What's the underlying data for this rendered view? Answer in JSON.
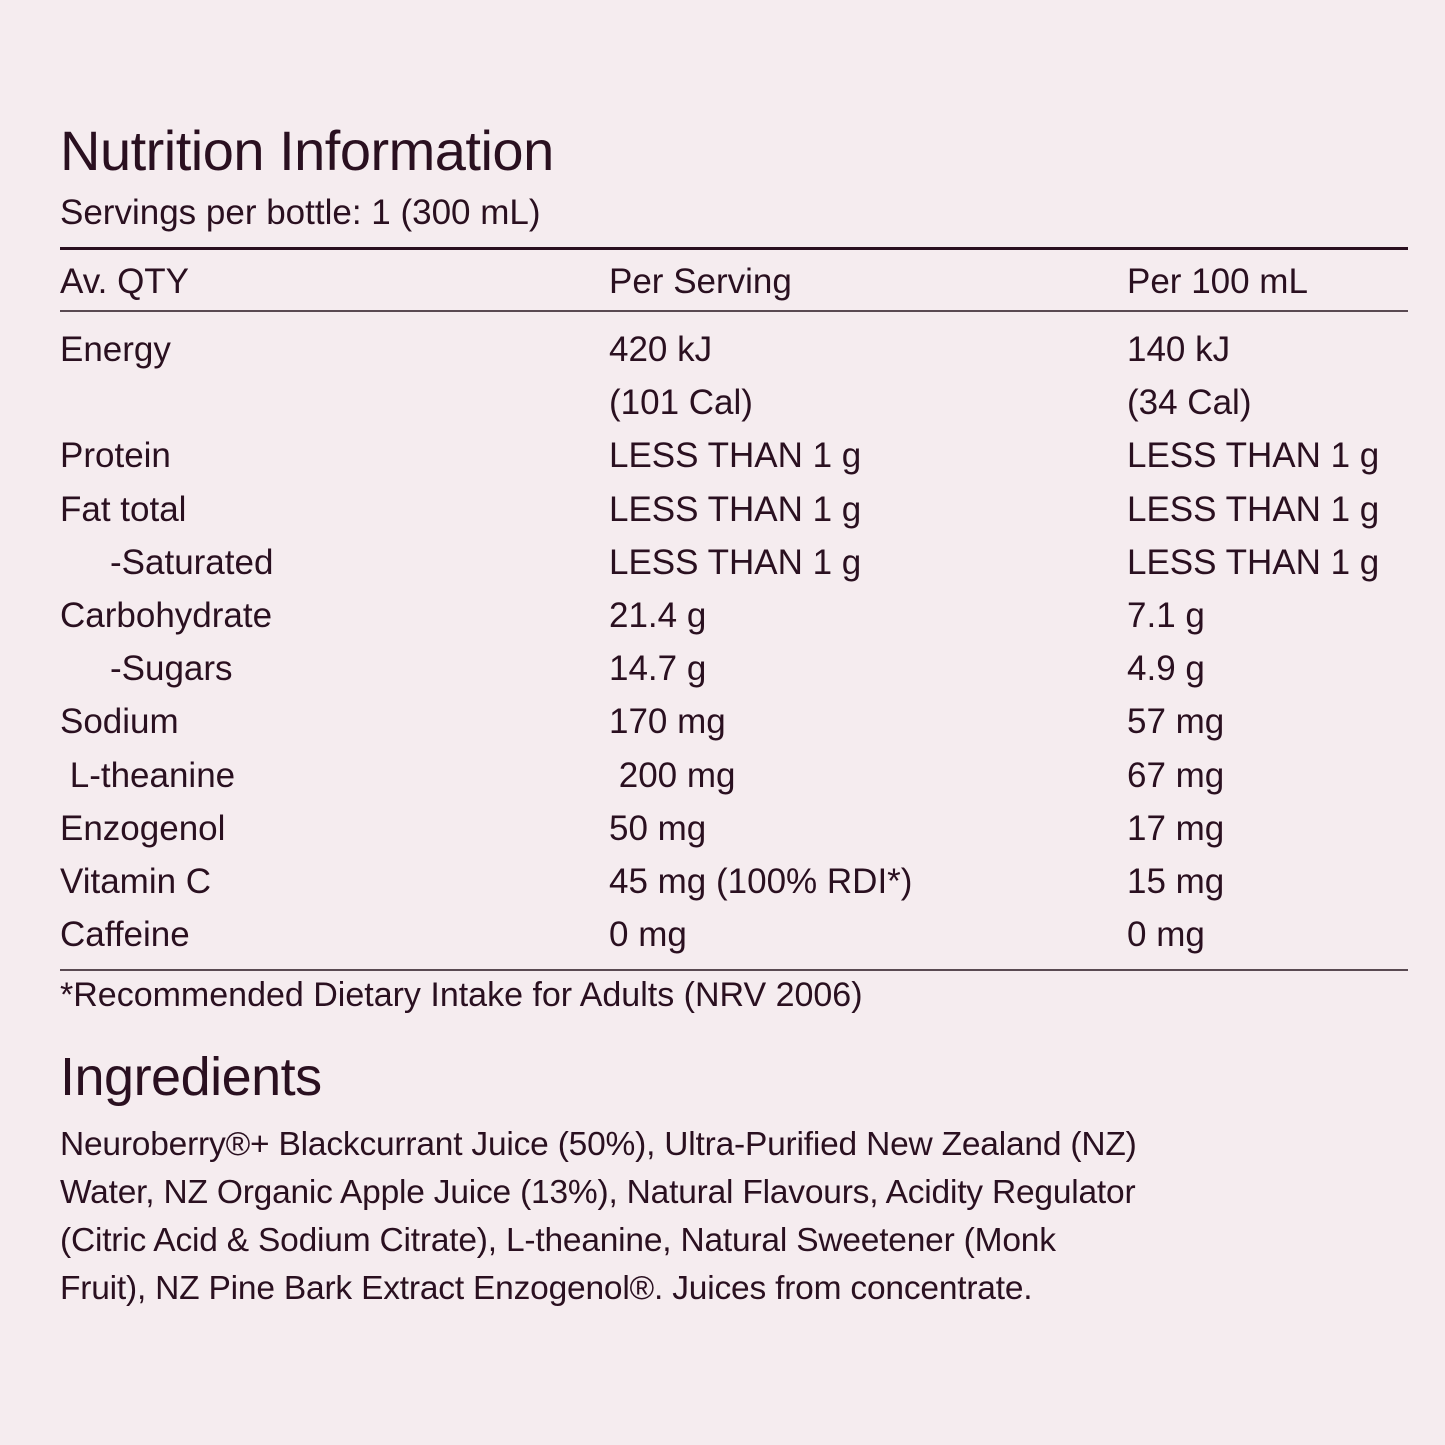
{
  "nutrition": {
    "title": "Nutrition Information",
    "servings": "Servings per bottle: 1 (300 mL)",
    "headers": [
      "Av. QTY",
      "Per Serving",
      "Per 100 mL"
    ],
    "rows": [
      {
        "name": "Energy",
        "per_serving": "420 kJ",
        "per_100ml": "140 kJ",
        "indent": false
      },
      {
        "name": "",
        "per_serving": "(101 Cal)",
        "per_100ml": "(34 Cal)",
        "indent": false
      },
      {
        "name": "Protein",
        "per_serving": "LESS THAN 1 g",
        "per_100ml": "LESS THAN 1 g",
        "indent": false
      },
      {
        "name": "Fat total",
        "per_serving": "LESS THAN 1 g",
        "per_100ml": "LESS THAN 1 g",
        "indent": false
      },
      {
        "name": "-Saturated",
        "per_serving": "LESS THAN 1 g",
        "per_100ml": "LESS THAN 1 g",
        "indent": true
      },
      {
        "name": "Carbohydrate",
        "per_serving": "21.4 g",
        "per_100ml": "7.1 g",
        "indent": false
      },
      {
        "name": "-Sugars",
        "per_serving": "14.7 g",
        "per_100ml": "4.9 g",
        "indent": true
      },
      {
        "name": "Sodium",
        "per_serving": "170 mg",
        "per_100ml": "57 mg",
        "indent": false
      },
      {
        "name": " L-theanine",
        "per_serving": " 200 mg",
        "per_100ml": "67 mg",
        "indent": false
      },
      {
        "name": "Enzogenol",
        "per_serving": "50 mg",
        "per_100ml": "17 mg",
        "indent": false
      },
      {
        "name": "Vitamin C",
        "per_serving": "45 mg (100% RDI*)",
        "per_100ml": "15 mg",
        "indent": false
      },
      {
        "name": "Caffeine",
        "per_serving": "0 mg",
        "per_100ml": "0 mg",
        "indent": false
      }
    ],
    "footnote": "*Recommended Dietary Intake for Adults (NRV 2006)"
  },
  "ingredients": {
    "title": "Ingredients",
    "lines": [
      "Neuroberry®+ Blackcurrant Juice (50%), Ultra-Purified New Zealand (NZ)",
      "Water, NZ Organic Apple Juice (13%), Natural Flavours, Acidity Regulator",
      "(Citric Acid & Sodium Citrate), L-theanine, Natural Sweetener (Monk",
      "Fruit), NZ Pine Bark Extract Enzogenol®. Juices from concentrate."
    ]
  },
  "colors": {
    "background": "#f5ecef",
    "text": "#2a1020"
  }
}
